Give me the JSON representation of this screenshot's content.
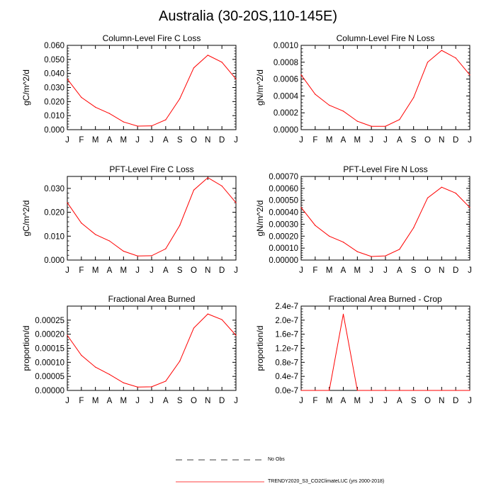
{
  "title": "Australia (30-20S,110-145E)",
  "months": [
    "J",
    "F",
    "M",
    "A",
    "M",
    "J",
    "J",
    "A",
    "S",
    "O",
    "N",
    "D",
    "J"
  ],
  "legend": {
    "obs_label": "No Obs",
    "model_label": "TRENDY2020_S3_CO2ClimateLUC (yrs 2000-2018)",
    "model_color": "#ff0000",
    "obs_color": "#000000"
  },
  "chart_data": [
    {
      "type": "line",
      "title": "Column-Level Fire C Loss",
      "ylabel": "gC/m^2/d",
      "ylim": [
        0,
        0.06
      ],
      "yticks": [
        0,
        0.01,
        0.02,
        0.03,
        0.04,
        0.05,
        0.06
      ],
      "ytick_labels": [
        "0.000",
        "0.010",
        "0.020",
        "0.030",
        "0.040",
        "0.050",
        "0.060"
      ],
      "series": [
        {
          "name": "TRENDY2020_S3_CO2ClimateLUC (yrs 2000-2018)",
          "values": [
            0.036,
            0.023,
            0.016,
            0.0115,
            0.0055,
            0.0025,
            0.0027,
            0.007,
            0.022,
            0.044,
            0.053,
            0.048,
            0.036
          ]
        }
      ]
    },
    {
      "type": "line",
      "title": "Column-Level Fire N Loss",
      "ylabel": "gN/m^2/d",
      "ylim": [
        0,
        0.001
      ],
      "yticks": [
        0,
        0.0002,
        0.0004,
        0.0006,
        0.0008,
        0.001
      ],
      "ytick_labels": [
        "0.0000",
        "0.0002",
        "0.0004",
        "0.0006",
        "0.0008",
        "0.0010"
      ],
      "series": [
        {
          "name": "TRENDY2020_S3_CO2ClimateLUC (yrs 2000-2018)",
          "values": [
            0.00065,
            0.00042,
            0.00029,
            0.00022,
            0.0001,
            4e-05,
            4e-05,
            0.00012,
            0.00038,
            0.0008,
            0.00094,
            0.00085,
            0.00065
          ]
        }
      ]
    },
    {
      "type": "line",
      "title": "PFT-Level Fire C Loss",
      "ylabel": "gC/m^2/d",
      "ylim": [
        0,
        0.035
      ],
      "yticks": [
        0,
        0.01,
        0.02,
        0.03
      ],
      "ytick_labels": [
        "0.000",
        "0.010",
        "0.020",
        "0.030"
      ],
      "series": [
        {
          "name": "TRENDY2020_S3_CO2ClimateLUC (yrs 2000-2018)",
          "values": [
            0.024,
            0.0155,
            0.0107,
            0.008,
            0.0037,
            0.0017,
            0.0018,
            0.0047,
            0.0145,
            0.0293,
            0.0345,
            0.031,
            0.024
          ]
        }
      ]
    },
    {
      "type": "line",
      "title": "PFT-Level Fire N Loss",
      "ylabel": "gN/m^2/d",
      "ylim": [
        0,
        0.0007
      ],
      "yticks": [
        0,
        0.0001,
        0.0002,
        0.0003,
        0.0004,
        0.0005,
        0.0006,
        0.0007
      ],
      "ytick_labels": [
        "0.00000",
        "0.00010",
        "0.00020",
        "0.00030",
        "0.00040",
        "0.00050",
        "0.00060",
        "0.00070"
      ],
      "series": [
        {
          "name": "TRENDY2020_S3_CO2ClimateLUC (yrs 2000-2018)",
          "values": [
            0.00044,
            0.00029,
            0.0002,
            0.00015,
            7e-05,
            3e-05,
            3.5e-05,
            9e-05,
            0.00027,
            0.00052,
            0.00061,
            0.00056,
            0.00044
          ]
        }
      ]
    },
    {
      "type": "line",
      "title": "Fractional Area Burned",
      "ylabel": "proportion/d",
      "ylim": [
        0,
        0.0003
      ],
      "yticks": [
        0,
        5e-05,
        0.0001,
        0.00015,
        0.0002,
        0.00025
      ],
      "ytick_labels": [
        "0.00000",
        "0.00005",
        "0.00010",
        "0.00015",
        "0.00020",
        "0.00025"
      ],
      "series": [
        {
          "name": "TRENDY2020_S3_CO2ClimateLUC (yrs 2000-2018)",
          "values": [
            0.000196,
            0.000125,
            8.3e-05,
            5.7e-05,
            2.7e-05,
            1.2e-05,
            1.3e-05,
            3.3e-05,
            0.000104,
            0.000222,
            0.000272,
            0.000252,
            0.000196
          ]
        }
      ]
    },
    {
      "type": "line",
      "title": "Fractional Area Burned - Crop",
      "ylabel": "proportion/d",
      "ylim": [
        0,
        2.4e-07
      ],
      "yticks": [
        0,
        4e-08,
        8e-08,
        1.2e-07,
        1.6e-07,
        2e-07,
        2.4e-07
      ],
      "ytick_labels": [
        "0.0e-7",
        "0.4e-7",
        "0.8e-7",
        "1.2e-7",
        "1.6e-7",
        "2.0e-7",
        "2.4e-7"
      ],
      "series": [
        {
          "name": "TRENDY2020_S3_CO2ClimateLUC (yrs 2000-2018)",
          "values": [
            0,
            0,
            0,
            2.17e-07,
            0,
            0,
            0,
            0,
            0,
            0,
            0,
            0,
            0
          ]
        }
      ]
    }
  ]
}
